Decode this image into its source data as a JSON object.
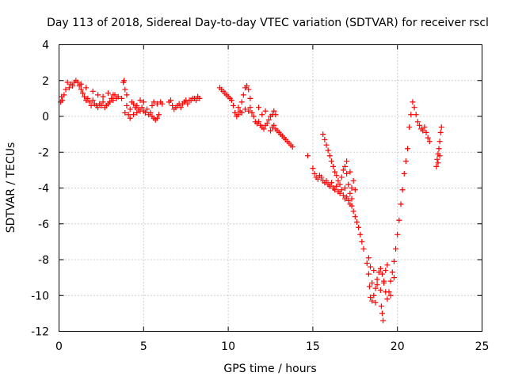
{
  "chart_data": {
    "type": "scatter",
    "title": "Day 113 of 2018, Sidereal Day-to-day VTEC variation (SDTVAR) for receiver rscl",
    "xlabel": "GPS time / hours",
    "ylabel": "SDTVAR / TECUs",
    "xlim": [
      0,
      25
    ],
    "ylim": [
      -12,
      4
    ],
    "xticks": [
      0,
      5,
      10,
      15,
      20,
      25
    ],
    "yticks": [
      -12,
      -10,
      -8,
      -6,
      -4,
      -2,
      0,
      2,
      4
    ],
    "grid": true,
    "marker": "plus",
    "color": "#ff0000",
    "series": [
      {
        "name": "SDTVAR",
        "points": [
          [
            0.1,
            0.8
          ],
          [
            0.15,
            1.1
          ],
          [
            0.2,
            0.9
          ],
          [
            0.3,
            1.2
          ],
          [
            0.4,
            1.5
          ],
          [
            0.5,
            1.9
          ],
          [
            0.6,
            1.6
          ],
          [
            0.7,
            1.8
          ],
          [
            0.8,
            1.7
          ],
          [
            0.9,
            1.9
          ],
          [
            1.0,
            2.0
          ],
          [
            1.1,
            1.9
          ],
          [
            1.2,
            1.7
          ],
          [
            1.3,
            1.5
          ],
          [
            1.4,
            1.3
          ],
          [
            1.5,
            1.1
          ],
          [
            1.6,
            0.9
          ],
          [
            1.7,
            1.0
          ],
          [
            1.8,
            0.8
          ],
          [
            1.9,
            0.6
          ],
          [
            2.0,
            0.9
          ],
          [
            2.1,
            0.7
          ],
          [
            2.2,
            0.6
          ],
          [
            2.3,
            0.5
          ],
          [
            2.4,
            0.7
          ],
          [
            2.5,
            0.6
          ],
          [
            2.6,
            0.8
          ],
          [
            2.7,
            0.5
          ],
          [
            2.8,
            0.6
          ],
          [
            2.9,
            0.7
          ],
          [
            3.0,
            0.8
          ],
          [
            3.1,
            1.0
          ],
          [
            3.2,
            0.9
          ],
          [
            3.3,
            1.2
          ],
          [
            3.4,
            1.0
          ],
          [
            3.5,
            1.1
          ],
          [
            1.3,
            1.8
          ],
          [
            1.6,
            1.6
          ],
          [
            2.0,
            1.4
          ],
          [
            2.3,
            1.2
          ],
          [
            2.6,
            1.1
          ],
          [
            2.9,
            1.3
          ],
          [
            3.2,
            1.2
          ],
          [
            3.7,
            1.0
          ],
          [
            3.8,
            1.9
          ],
          [
            3.85,
            2.0
          ],
          [
            3.9,
            1.5
          ],
          [
            4.0,
            1.2
          ],
          [
            4.0,
            0.6
          ],
          [
            3.9,
            0.2
          ],
          [
            4.1,
            0.1
          ],
          [
            4.2,
            0.4
          ],
          [
            4.3,
            0.8
          ],
          [
            4.4,
            0.7
          ],
          [
            4.5,
            0.5
          ],
          [
            4.6,
            0.6
          ],
          [
            4.7,
            0.4
          ],
          [
            4.8,
            0.3
          ],
          [
            4.9,
            0.5
          ],
          [
            5.0,
            0.3
          ],
          [
            5.1,
            0.2
          ],
          [
            5.2,
            0.4
          ],
          [
            5.3,
            0.1
          ],
          [
            5.4,
            0.2
          ],
          [
            5.5,
            0.0
          ],
          [
            5.6,
            -0.1
          ],
          [
            5.7,
            -0.2
          ],
          [
            5.8,
            -0.1
          ],
          [
            5.9,
            0.1
          ],
          [
            5.5,
            0.6
          ],
          [
            5.6,
            0.8
          ],
          [
            5.8,
            0.7
          ],
          [
            6.0,
            0.8
          ],
          [
            6.1,
            0.7
          ],
          [
            4.4,
            0.1
          ],
          [
            4.6,
            0.2
          ],
          [
            4.2,
            -0.1
          ],
          [
            5.0,
            0.8
          ],
          [
            4.8,
            0.9
          ],
          [
            6.5,
            0.8
          ],
          [
            6.6,
            0.9
          ],
          [
            6.7,
            0.6
          ],
          [
            6.8,
            0.4
          ],
          [
            6.9,
            0.5
          ],
          [
            7.0,
            0.6
          ],
          [
            7.1,
            0.7
          ],
          [
            7.2,
            0.5
          ],
          [
            7.3,
            0.7
          ],
          [
            7.4,
            0.8
          ],
          [
            7.5,
            0.9
          ],
          [
            7.6,
            0.7
          ],
          [
            7.7,
            0.9
          ],
          [
            7.8,
            0.9
          ],
          [
            7.9,
            1.0
          ],
          [
            8.0,
            1.0
          ],
          [
            8.1,
            0.9
          ],
          [
            8.2,
            1.1
          ],
          [
            8.3,
            1.0
          ],
          [
            9.5,
            1.6
          ],
          [
            9.6,
            1.5
          ],
          [
            9.7,
            1.4
          ],
          [
            9.8,
            1.3
          ],
          [
            9.9,
            1.2
          ],
          [
            10.0,
            1.1
          ],
          [
            10.1,
            1.0
          ],
          [
            10.2,
            0.9
          ],
          [
            10.3,
            0.6
          ],
          [
            10.4,
            0.2
          ],
          [
            10.5,
            0.0
          ],
          [
            10.6,
            0.1
          ],
          [
            10.7,
            0.3
          ],
          [
            10.8,
            0.8
          ],
          [
            10.9,
            1.2
          ],
          [
            11.0,
            1.6
          ],
          [
            11.1,
            1.7
          ],
          [
            11.2,
            1.5
          ],
          [
            11.3,
            1.0
          ],
          [
            11.3,
            0.5
          ],
          [
            11.2,
            0.3
          ],
          [
            11.0,
            0.4
          ],
          [
            10.8,
            0.2
          ],
          [
            10.6,
            0.5
          ],
          [
            11.4,
            0.2
          ],
          [
            11.5,
            0.0
          ],
          [
            11.6,
            -0.3
          ],
          [
            11.7,
            -0.4
          ],
          [
            11.8,
            -0.3
          ],
          [
            11.9,
            -0.5
          ],
          [
            12.0,
            -0.6
          ],
          [
            12.1,
            -0.7
          ],
          [
            12.2,
            -0.5
          ],
          [
            12.3,
            -0.4
          ],
          [
            12.4,
            -0.2
          ],
          [
            12.5,
            0.0
          ],
          [
            12.6,
            0.1
          ],
          [
            12.7,
            0.3
          ],
          [
            12.8,
            0.1
          ],
          [
            12.5,
            -0.8
          ],
          [
            12.6,
            -0.6
          ],
          [
            12.7,
            -0.5
          ],
          [
            12.8,
            -0.7
          ],
          [
            12.9,
            -0.8
          ],
          [
            13.0,
            -0.9
          ],
          [
            13.1,
            -1.0
          ],
          [
            13.2,
            -1.1
          ],
          [
            13.3,
            -1.2
          ],
          [
            13.4,
            -1.3
          ],
          [
            13.5,
            -1.4
          ],
          [
            13.6,
            -1.5
          ],
          [
            13.7,
            -1.6
          ],
          [
            13.8,
            -1.7
          ],
          [
            12.0,
            0.1
          ],
          [
            12.2,
            0.3
          ],
          [
            11.8,
            0.5
          ],
          [
            14.7,
            -2.2
          ],
          [
            15.0,
            -2.9
          ],
          [
            15.1,
            -3.2
          ],
          [
            15.2,
            -3.4
          ],
          [
            15.3,
            -3.5
          ],
          [
            15.4,
            -3.3
          ],
          [
            15.5,
            -3.4
          ],
          [
            15.6,
            -3.6
          ],
          [
            15.7,
            -3.7
          ],
          [
            15.8,
            -3.6
          ],
          [
            15.9,
            -3.8
          ],
          [
            16.0,
            -3.9
          ],
          [
            16.1,
            -3.7
          ],
          [
            16.2,
            -4.0
          ],
          [
            16.3,
            -4.1
          ],
          [
            16.4,
            -3.9
          ],
          [
            16.5,
            -4.2
          ],
          [
            16.6,
            -4.3
          ],
          [
            16.7,
            -4.1
          ],
          [
            16.8,
            -4.4
          ],
          [
            16.9,
            -4.6
          ],
          [
            17.0,
            -4.5
          ],
          [
            17.1,
            -4.7
          ],
          [
            17.2,
            -4.9
          ],
          [
            17.3,
            -5.0
          ],
          [
            17.4,
            -5.3
          ],
          [
            17.5,
            -5.6
          ],
          [
            17.6,
            -5.9
          ],
          [
            17.7,
            -6.2
          ],
          [
            17.8,
            -6.6
          ],
          [
            17.9,
            -7.0
          ],
          [
            18.0,
            -7.4
          ],
          [
            15.6,
            -1.0
          ],
          [
            15.7,
            -1.3
          ],
          [
            15.8,
            -1.6
          ],
          [
            15.9,
            -1.9
          ],
          [
            16.0,
            -2.2
          ],
          [
            16.1,
            -2.5
          ],
          [
            16.2,
            -2.8
          ],
          [
            16.3,
            -3.1
          ],
          [
            16.4,
            -3.3
          ],
          [
            16.5,
            -3.6
          ],
          [
            16.6,
            -3.8
          ],
          [
            16.7,
            -3.4
          ],
          [
            16.8,
            -3.0
          ],
          [
            16.9,
            -2.8
          ],
          [
            17.0,
            -3.2
          ],
          [
            17.1,
            -3.8
          ],
          [
            17.2,
            -4.3
          ],
          [
            17.3,
            -4.0
          ],
          [
            17.4,
            -3.6
          ],
          [
            17.5,
            -4.1
          ],
          [
            17.0,
            -2.5
          ],
          [
            17.2,
            -3.1
          ],
          [
            16.9,
            -4.0
          ],
          [
            17.3,
            -4.6
          ],
          [
            18.2,
            -8.2
          ],
          [
            18.3,
            -8.8
          ],
          [
            18.35,
            -9.5
          ],
          [
            18.4,
            -10.1
          ],
          [
            18.5,
            -10.3
          ],
          [
            18.6,
            -10.0
          ],
          [
            18.7,
            -9.6
          ],
          [
            18.8,
            -9.1
          ],
          [
            18.9,
            -8.7
          ],
          [
            19.0,
            -8.5
          ],
          [
            19.1,
            -8.8
          ],
          [
            19.2,
            -9.3
          ],
          [
            19.3,
            -9.8
          ],
          [
            19.4,
            -10.2
          ],
          [
            19.5,
            -9.8
          ],
          [
            19.6,
            -9.2
          ],
          [
            19.7,
            -8.7
          ],
          [
            19.8,
            -8.1
          ],
          [
            19.9,
            -7.4
          ],
          [
            20.0,
            -6.6
          ],
          [
            20.1,
            -5.8
          ],
          [
            20.2,
            -4.9
          ],
          [
            20.3,
            -4.1
          ],
          [
            20.4,
            -3.2
          ],
          [
            20.5,
            -2.5
          ],
          [
            20.6,
            -1.8
          ],
          [
            18.4,
            -8.4
          ],
          [
            18.6,
            -8.6
          ],
          [
            18.8,
            -9.4
          ],
          [
            19.0,
            -9.7
          ],
          [
            19.2,
            -9.2
          ],
          [
            19.3,
            -8.6
          ],
          [
            19.4,
            -8.3
          ],
          [
            19.1,
            -11.0
          ],
          [
            19.15,
            -11.4
          ],
          [
            19.05,
            -10.6
          ],
          [
            18.5,
            -9.3
          ],
          [
            18.3,
            -7.9
          ],
          [
            18.7,
            -10.4
          ],
          [
            19.6,
            -10.0
          ],
          [
            19.8,
            -9.0
          ],
          [
            20.7,
            -0.6
          ],
          [
            20.8,
            0.1
          ],
          [
            20.9,
            0.8
          ],
          [
            21.0,
            0.5
          ],
          [
            21.1,
            0.1
          ],
          [
            21.2,
            -0.3
          ],
          [
            21.3,
            -0.5
          ],
          [
            21.4,
            -0.7
          ],
          [
            21.5,
            -0.8
          ],
          [
            21.6,
            -0.6
          ],
          [
            21.7,
            -0.9
          ],
          [
            21.8,
            -1.2
          ],
          [
            21.9,
            -1.4
          ],
          [
            22.3,
            -2.8
          ],
          [
            22.35,
            -2.4
          ],
          [
            22.4,
            -2.1
          ],
          [
            22.45,
            -1.8
          ],
          [
            22.5,
            -1.4
          ],
          [
            22.55,
            -0.9
          ],
          [
            22.6,
            -0.6
          ],
          [
            22.4,
            -2.6
          ],
          [
            22.5,
            -2.2
          ]
        ]
      }
    ]
  }
}
